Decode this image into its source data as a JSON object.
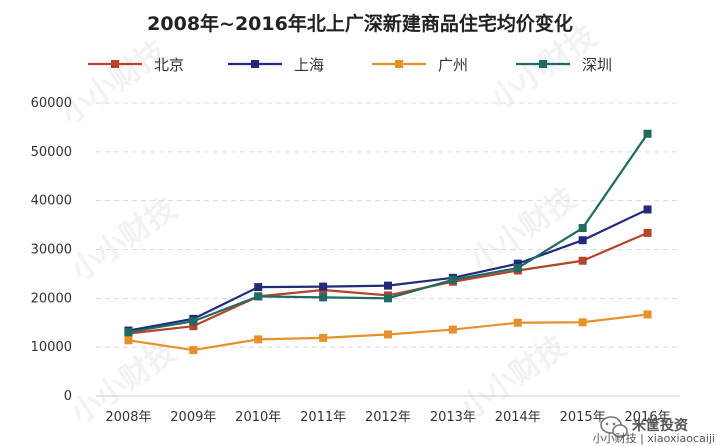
{
  "chart_data": {
    "type": "line",
    "title": "2008年~2016年北上广深新建商品住宅均价变化",
    "categories": [
      "2008年",
      "2009年",
      "2010年",
      "2011年",
      "2012年",
      "2013年",
      "2014年",
      "2015年",
      "2016年"
    ],
    "yticks": [
      "0",
      "10000",
      "20000",
      "30000",
      "40000",
      "50000",
      "60000"
    ],
    "ylim": [
      0,
      60000
    ],
    "grid": true,
    "legend_position": "top",
    "series": [
      {
        "name": "北京",
        "color": "#b5442a",
        "values": [
          12800,
          14300,
          20400,
          21700,
          20600,
          23400,
          25700,
          27700,
          33400
        ]
      },
      {
        "name": "上海",
        "color": "#222a7a",
        "values": [
          13400,
          15800,
          22300,
          22400,
          22600,
          24200,
          27100,
          31900,
          38200
        ]
      },
      {
        "name": "广州",
        "color": "#e8902a",
        "values": [
          11400,
          9400,
          11600,
          11900,
          12600,
          13600,
          15000,
          15100,
          16700
        ]
      },
      {
        "name": "深圳",
        "color": "#1d6b64",
        "values": [
          13100,
          15300,
          20400,
          20200,
          20000,
          23800,
          26200,
          34400,
          53700
        ]
      }
    ]
  },
  "watermark": {
    "text": "小小财技"
  },
  "footer": {
    "wechat_label": "米筐投资",
    "credit": "小小财技 | xiaoxiaocaiji"
  }
}
